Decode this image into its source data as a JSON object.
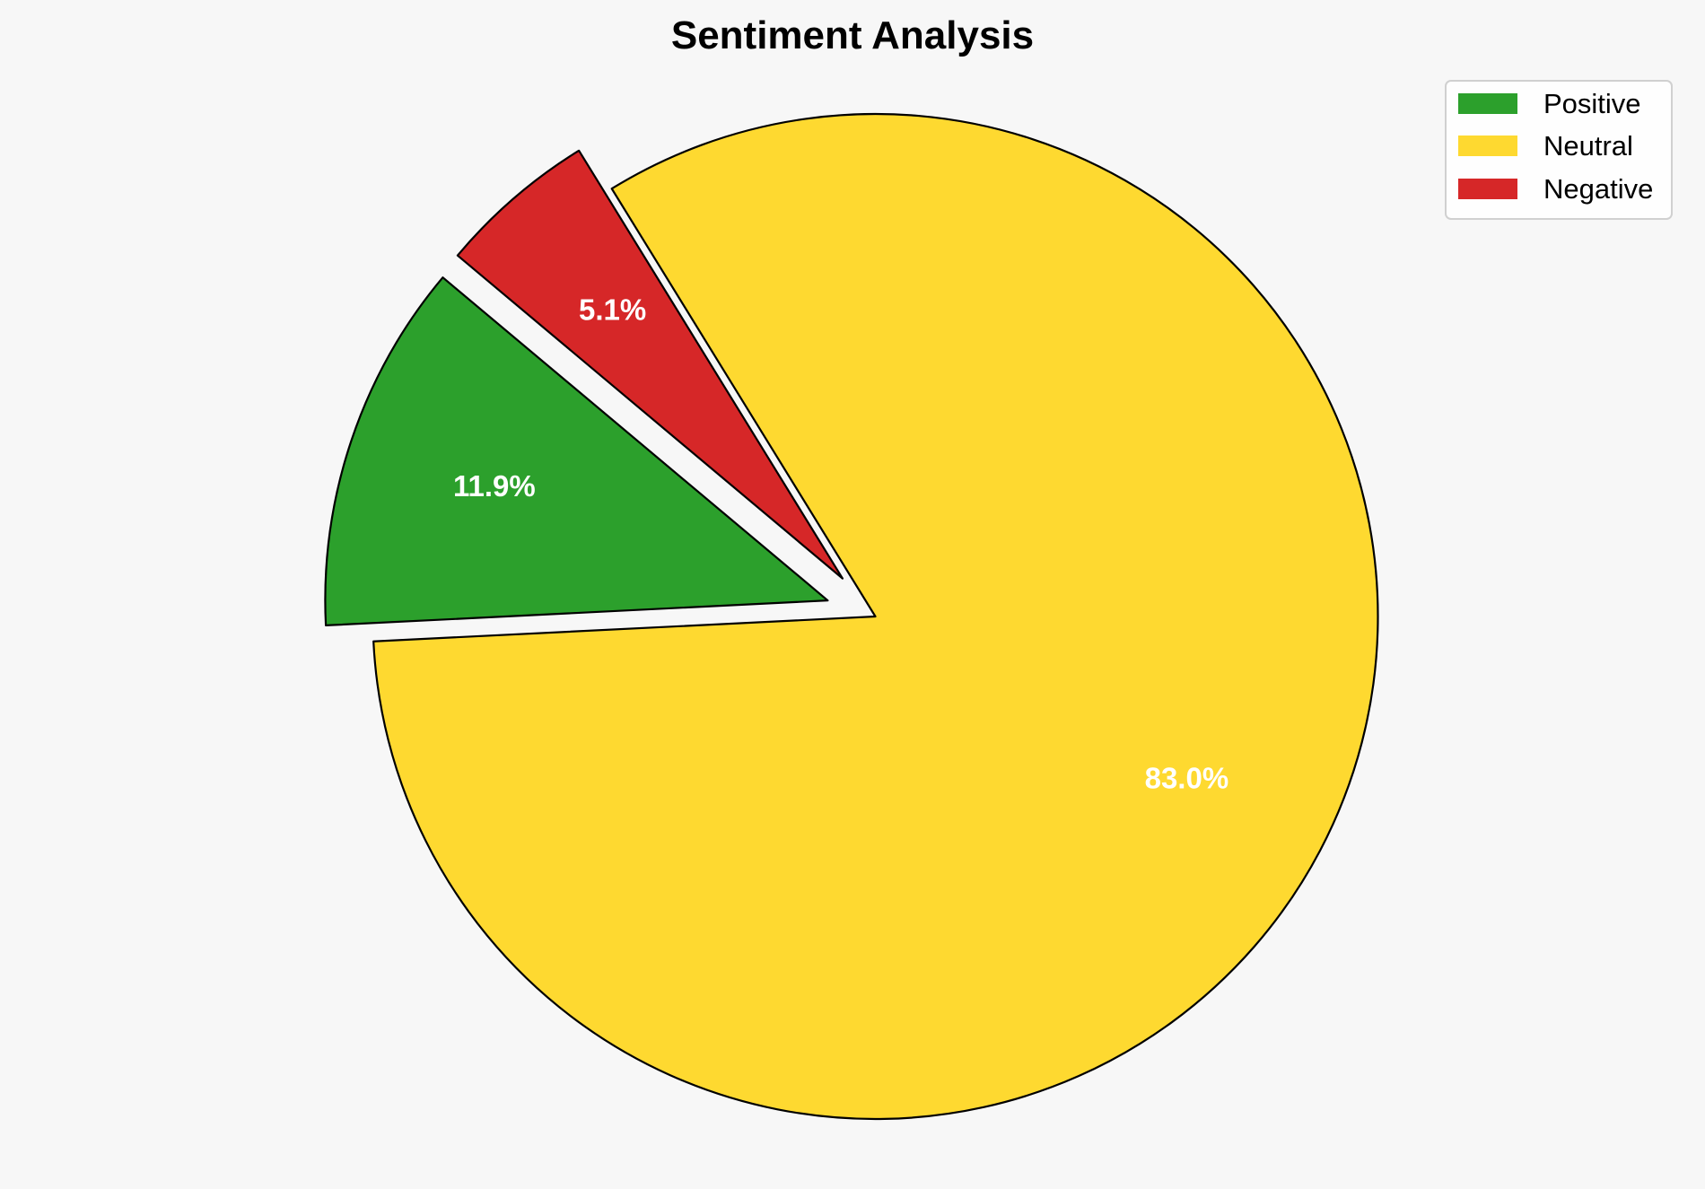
{
  "chart_data": {
    "type": "pie",
    "title": "Sentiment Analysis",
    "categories": [
      "Positive",
      "Neutral",
      "Negative"
    ],
    "values": [
      11.9,
      83.0,
      5.1
    ],
    "labels": [
      "11.9%",
      "83.0%",
      "5.1%"
    ],
    "colors": [
      "#2ca02c",
      "#fed930",
      "#d62728"
    ],
    "explode": [
      0.1,
      0,
      0.1
    ],
    "start_angle": 140,
    "direction": "counterclockwise",
    "edge_color": "#000000",
    "legend": {
      "placement": "top-right",
      "entries": [
        "Positive",
        "Neutral",
        "Negative"
      ]
    }
  }
}
